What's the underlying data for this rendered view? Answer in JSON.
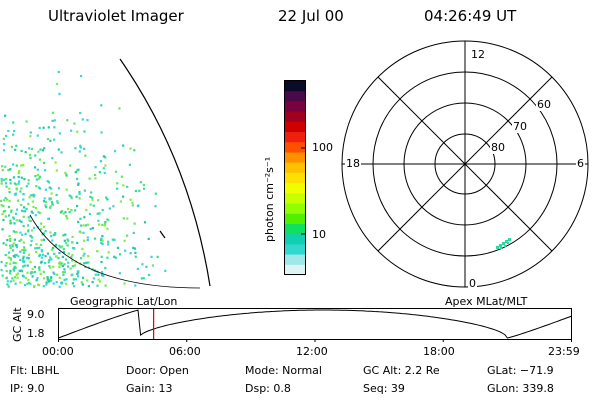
{
  "header": {
    "instrument": "Ultraviolet Imager",
    "date": "22 Jul 00",
    "time": "04:26:49 UT"
  },
  "colorbar": {
    "label": "photon cm⁻²s⁻¹",
    "ticks": [
      "100",
      "10"
    ],
    "colors": [
      "#0a0a2a",
      "#4a0a4a",
      "#7a0040",
      "#a00020",
      "#d00000",
      "#f02010",
      "#ff5000",
      "#ff9000",
      "#ffc000",
      "#ffe000",
      "#f0ff00",
      "#c8ff00",
      "#90ff00",
      "#50f000",
      "#10e060",
      "#10d0b0",
      "#30d8d0",
      "#a0e8e8",
      "#dcf4f4"
    ]
  },
  "polar_plot": {
    "label": "Apex MLat/MLT",
    "mlt_labels": {
      "top": "12",
      "left": "18",
      "right": "6",
      "bottom": "0"
    },
    "lat_labels": [
      "60",
      "70",
      "80"
    ]
  },
  "geo_plot": {
    "label": "Geographic Lat/Lon"
  },
  "altitude_strip": {
    "ylabel": "GC Alt",
    "yticks": [
      "9.0",
      "1.8"
    ],
    "xticks": [
      "00:00",
      "06:00",
      "12:00",
      "18:00",
      "23:59"
    ],
    "marker_time_hours": 4.45,
    "line_color": "#000000",
    "marker_color": "#e00000"
  },
  "info_rows": [
    [
      {
        "key": "flt",
        "text": "Flt:  LBHL"
      },
      {
        "key": "door",
        "text": "Door:  Open"
      },
      {
        "key": "mode",
        "text": "Mode:  Normal"
      },
      {
        "key": "gcalt",
        "text": "GC Alt:  2.2 Re"
      },
      {
        "key": "glat",
        "text": "GLat:  −71.9"
      }
    ],
    [
      {
        "key": "ip",
        "text": "IP:  9.0"
      },
      {
        "key": "gain",
        "text": "Gain:  13"
      },
      {
        "key": "dsp",
        "text": "Dsp:     0.8"
      },
      {
        "key": "seq",
        "text": "Seq:  39"
      },
      {
        "key": "glon",
        "text": "GLon:  339.8"
      }
    ]
  ]
}
